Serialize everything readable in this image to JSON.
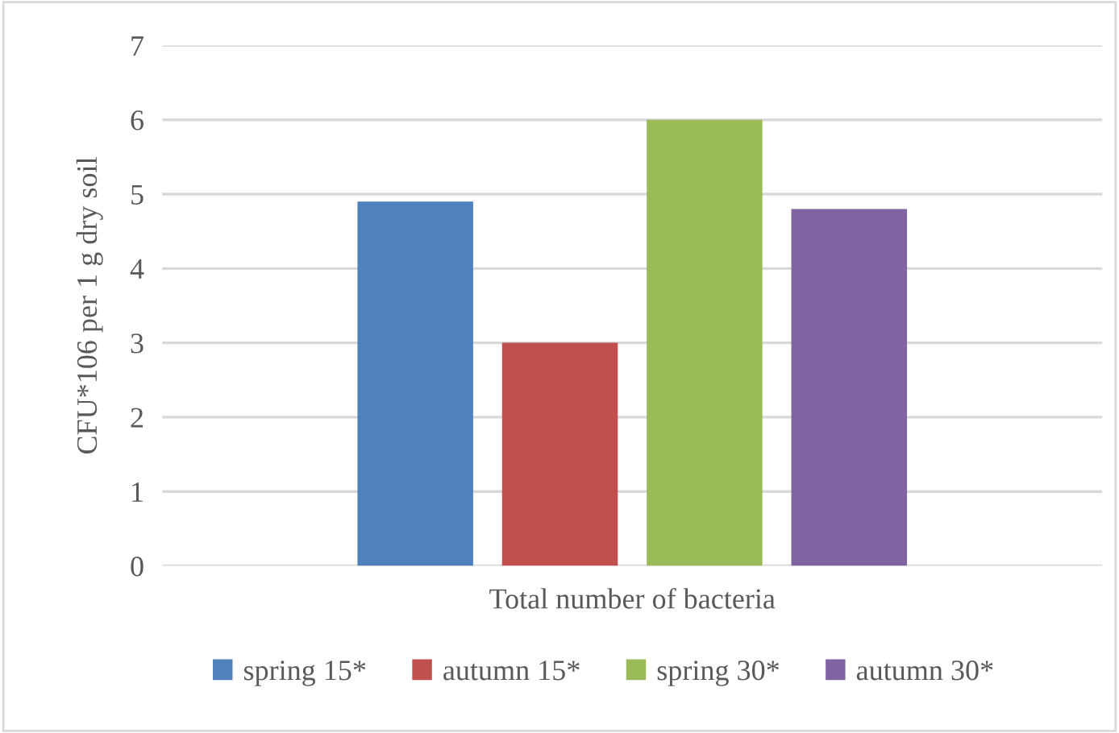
{
  "chart_data": {
    "type": "bar",
    "ylabel": "CFU*106 per 1 g dry soil",
    "categories": [
      "Total number of bacteria"
    ],
    "series": [
      {
        "name": "spring 15*",
        "color": "#4f81bd",
        "values": [
          4.9
        ]
      },
      {
        "name": "autumn 15*",
        "color": "#c0504d",
        "values": [
          3.0
        ]
      },
      {
        "name": "spring 30*",
        "color": "#9bbb59",
        "values": [
          6.0
        ]
      },
      {
        "name": "autumn 30*",
        "color": "#8064a2",
        "values": [
          4.8
        ]
      }
    ],
    "ylim": [
      0,
      7
    ],
    "yticks": [
      0,
      1,
      2,
      3,
      4,
      5,
      6,
      7
    ],
    "grid": "y",
    "legend": "bottom"
  }
}
